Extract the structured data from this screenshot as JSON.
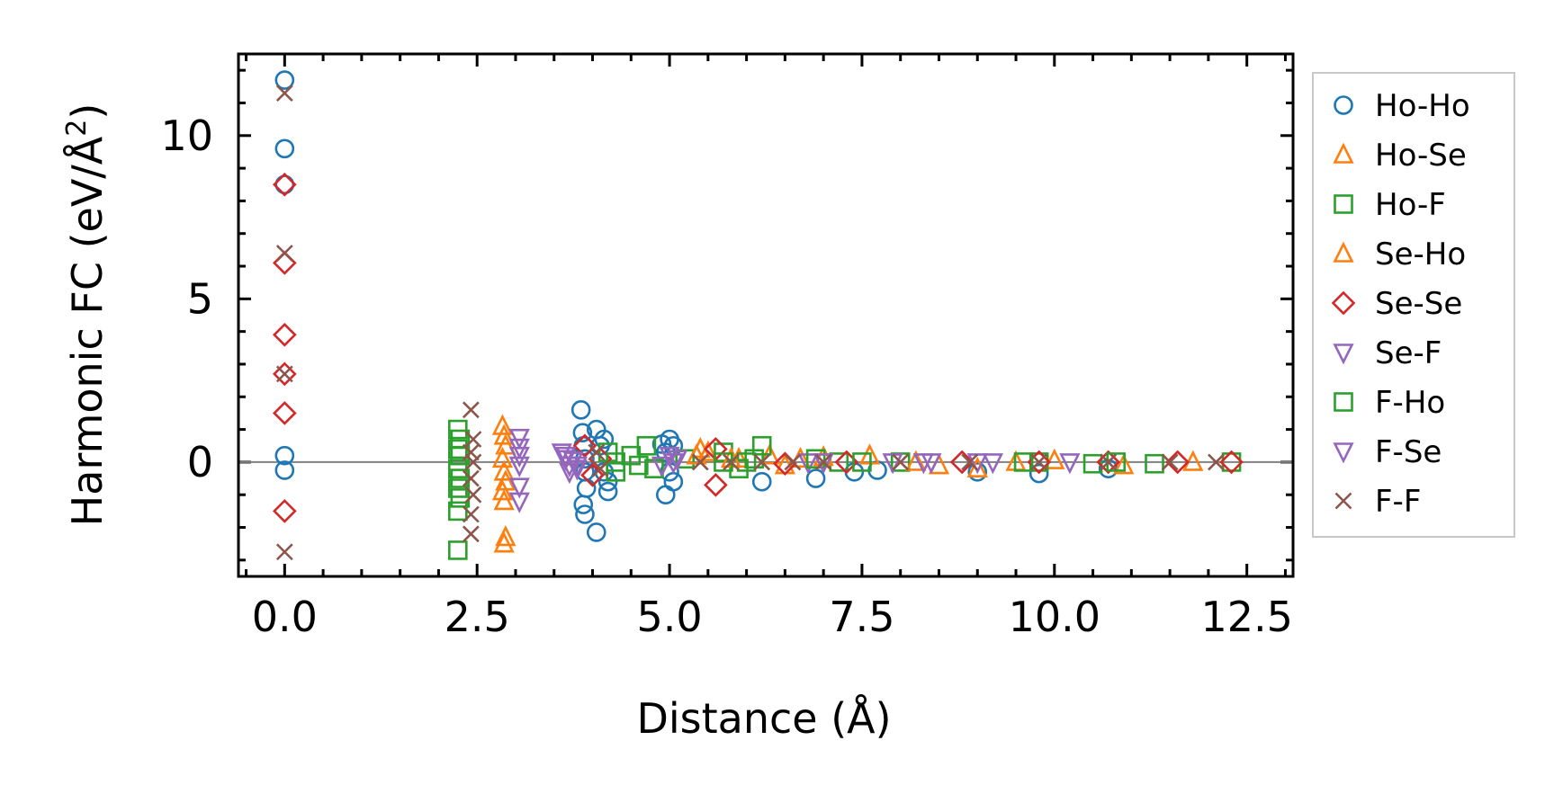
{
  "chart_data": {
    "type": "scatter",
    "xlabel": "Distance (Å)",
    "ylabel": "Harmonic FC (eV/Å",
    "ylabel_sup": "2",
    "ylabel_suffix": ")",
    "xlim": [
      -0.6,
      13.1
    ],
    "ylim": [
      -3.5,
      12.5
    ],
    "xticks": [
      0.0,
      2.5,
      5.0,
      7.5,
      10.0,
      12.5
    ],
    "xtick_labels": [
      "0.0",
      "2.5",
      "5.0",
      "7.5",
      "10.0",
      "12.5"
    ],
    "yticks": [
      0,
      5,
      10
    ],
    "ytick_labels": [
      "0",
      "5",
      "10"
    ],
    "zero_line": true,
    "grid": false,
    "legend_position": "outside-right",
    "series": [
      {
        "name": "Ho-Ho",
        "marker": "circle",
        "color": "#1f77b4",
        "points": [
          [
            0.0,
            11.7
          ],
          [
            0.0,
            9.6
          ],
          [
            0.0,
            8.5
          ],
          [
            0.0,
            0.2
          ],
          [
            0.0,
            -0.25
          ],
          [
            3.85,
            1.6
          ],
          [
            3.87,
            0.9
          ],
          [
            3.88,
            0.5
          ],
          [
            3.9,
            0.1
          ],
          [
            3.9,
            -0.3
          ],
          [
            3.92,
            -0.8
          ],
          [
            3.88,
            -1.3
          ],
          [
            3.9,
            -1.6
          ],
          [
            4.05,
            -2.15
          ],
          [
            4.05,
            1.0
          ],
          [
            4.1,
            0.5
          ],
          [
            4.15,
            0.7
          ],
          [
            4.15,
            -0.3
          ],
          [
            4.2,
            -0.6
          ],
          [
            4.2,
            -0.9
          ],
          [
            5.0,
            0.7
          ],
          [
            5.05,
            0.5
          ],
          [
            4.95,
            0.3
          ],
          [
            5.0,
            -0.3
          ],
          [
            5.05,
            -0.6
          ],
          [
            4.95,
            -1.0
          ],
          [
            4.9,
            0.55
          ],
          [
            6.2,
            -0.6
          ],
          [
            6.9,
            -0.5
          ],
          [
            7.4,
            -0.3
          ],
          [
            7.7,
            -0.25
          ],
          [
            9.0,
            -0.3
          ],
          [
            9.8,
            -0.35
          ],
          [
            10.7,
            -0.2
          ]
        ]
      },
      {
        "name": "Ho-Se",
        "marker": "triangle-up",
        "color": "#ff7f0e",
        "points": [
          [
            2.83,
            1.1
          ],
          [
            2.85,
            0.8
          ],
          [
            2.87,
            0.5
          ],
          [
            2.83,
            0.1
          ],
          [
            2.85,
            -0.3
          ],
          [
            2.87,
            -0.6
          ],
          [
            2.83,
            -0.9
          ],
          [
            2.85,
            -1.2
          ],
          [
            2.87,
            -2.3
          ],
          [
            2.85,
            -2.5
          ],
          [
            5.4,
            0.4
          ],
          [
            5.5,
            0.3
          ],
          [
            5.9,
            0.1
          ],
          [
            6.3,
            0.2
          ],
          [
            6.7,
            0.1
          ],
          [
            7.6,
            0.2
          ],
          [
            8.5,
            -0.1
          ],
          [
            9.0,
            -0.2
          ],
          [
            10.0,
            0.05
          ],
          [
            10.9,
            -0.1
          ]
        ]
      },
      {
        "name": "Ho-F",
        "marker": "square",
        "color": "#2ca02c",
        "points": [
          [
            2.25,
            1.0
          ],
          [
            2.28,
            0.7
          ],
          [
            2.25,
            0.4
          ],
          [
            2.28,
            0.2
          ],
          [
            2.25,
            -0.2
          ],
          [
            2.28,
            -0.5
          ],
          [
            2.25,
            -0.8
          ],
          [
            2.28,
            -1.1
          ],
          [
            2.25,
            -1.5
          ],
          [
            2.25,
            -2.7
          ],
          [
            4.2,
            0.3
          ],
          [
            4.3,
            -0.3
          ],
          [
            4.5,
            0.2
          ],
          [
            4.7,
            0.5
          ],
          [
            4.8,
            -0.2
          ],
          [
            5.2,
            0.1
          ],
          [
            5.7,
            0.3
          ],
          [
            5.9,
            -0.2
          ],
          [
            6.0,
            0.0
          ],
          [
            6.2,
            0.5
          ],
          [
            7.2,
            0.0
          ],
          [
            8.0,
            0.0
          ],
          [
            9.8,
            0.0
          ],
          [
            10.5,
            -0.05
          ],
          [
            11.3,
            -0.05
          ],
          [
            12.3,
            0.0
          ]
        ]
      },
      {
        "name": "Se-Ho",
        "marker": "triangle-up",
        "color": "#ff7f0e",
        "points": [
          [
            5.35,
            0.2
          ],
          [
            5.8,
            0.1
          ],
          [
            6.5,
            -0.1
          ],
          [
            7.0,
            0.15
          ],
          [
            8.2,
            0.0
          ],
          [
            9.5,
            0.0
          ],
          [
            11.8,
            0.0
          ]
        ]
      },
      {
        "name": "Se-Se",
        "marker": "diamond",
        "color": "#d62728",
        "points": [
          [
            0.0,
            8.5
          ],
          [
            0.0,
            6.1
          ],
          [
            0.0,
            3.9
          ],
          [
            0.0,
            2.7
          ],
          [
            0.0,
            1.5
          ],
          [
            0.0,
            -1.5
          ],
          [
            3.9,
            0.5
          ],
          [
            4.0,
            -0.4
          ],
          [
            4.1,
            0.1
          ],
          [
            5.6,
            0.4
          ],
          [
            5.6,
            -0.7
          ],
          [
            6.5,
            -0.05
          ],
          [
            7.3,
            0.0
          ],
          [
            8.8,
            0.0
          ],
          [
            9.8,
            0.0
          ],
          [
            10.7,
            0.0
          ],
          [
            11.6,
            0.0
          ],
          [
            12.3,
            0.0
          ]
        ]
      },
      {
        "name": "Se-F",
        "marker": "triangle-down",
        "color": "#9467bd",
        "points": [
          [
            3.05,
            0.75
          ],
          [
            3.05,
            0.45
          ],
          [
            3.05,
            0.2
          ],
          [
            3.05,
            -0.1
          ],
          [
            3.05,
            -0.75
          ],
          [
            3.05,
            -1.2
          ],
          [
            3.6,
            0.3
          ],
          [
            3.65,
            0.1
          ],
          [
            3.7,
            -0.1
          ],
          [
            3.7,
            -0.3
          ],
          [
            3.75,
            0.05
          ],
          [
            3.8,
            -0.2
          ],
          [
            5.0,
            0.2
          ],
          [
            4.9,
            -0.1
          ],
          [
            5.1,
            0.1
          ],
          [
            6.8,
            0.0
          ],
          [
            7.9,
            0.0
          ],
          [
            8.4,
            0.0
          ],
          [
            9.2,
            0.0
          ],
          [
            10.2,
            0.0
          ]
        ]
      },
      {
        "name": "F-Ho",
        "marker": "square",
        "color": "#2ca02c",
        "points": [
          [
            4.3,
            0.0
          ],
          [
            4.6,
            -0.1
          ],
          [
            5.7,
            0.0
          ],
          [
            6.1,
            0.1
          ],
          [
            6.9,
            0.1
          ],
          [
            7.5,
            0.0
          ],
          [
            9.6,
            0.0
          ],
          [
            10.8,
            0.0
          ]
        ]
      },
      {
        "name": "F-Se",
        "marker": "triangle-down",
        "color": "#9467bd",
        "points": [
          [
            3.65,
            0.2
          ],
          [
            3.8,
            -0.1
          ],
          [
            5.05,
            0.0
          ],
          [
            7.0,
            0.0
          ],
          [
            8.3,
            0.0
          ],
          [
            9.0,
            0.0
          ]
        ]
      },
      {
        "name": "F-F",
        "marker": "x",
        "color": "#8c564b",
        "points": [
          [
            0.0,
            11.3
          ],
          [
            0.0,
            6.4
          ],
          [
            0.0,
            2.7
          ],
          [
            0.0,
            -2.75
          ],
          [
            2.42,
            1.6
          ],
          [
            2.45,
            0.7
          ],
          [
            2.42,
            0.3
          ],
          [
            2.45,
            0.0
          ],
          [
            2.42,
            -0.5
          ],
          [
            2.45,
            -1.0
          ],
          [
            2.42,
            -1.6
          ],
          [
            2.42,
            -2.2
          ],
          [
            4.05,
            0.3
          ],
          [
            4.1,
            -0.2
          ],
          [
            5.4,
            0.0
          ],
          [
            5.8,
            0.0
          ],
          [
            6.2,
            0.0
          ],
          [
            6.6,
            0.0
          ],
          [
            7.0,
            0.0
          ],
          [
            8.0,
            0.0
          ],
          [
            8.9,
            0.0
          ],
          [
            9.8,
            0.0
          ],
          [
            10.7,
            0.0
          ],
          [
            11.5,
            0.0
          ],
          [
            12.1,
            0.0
          ]
        ]
      }
    ]
  }
}
